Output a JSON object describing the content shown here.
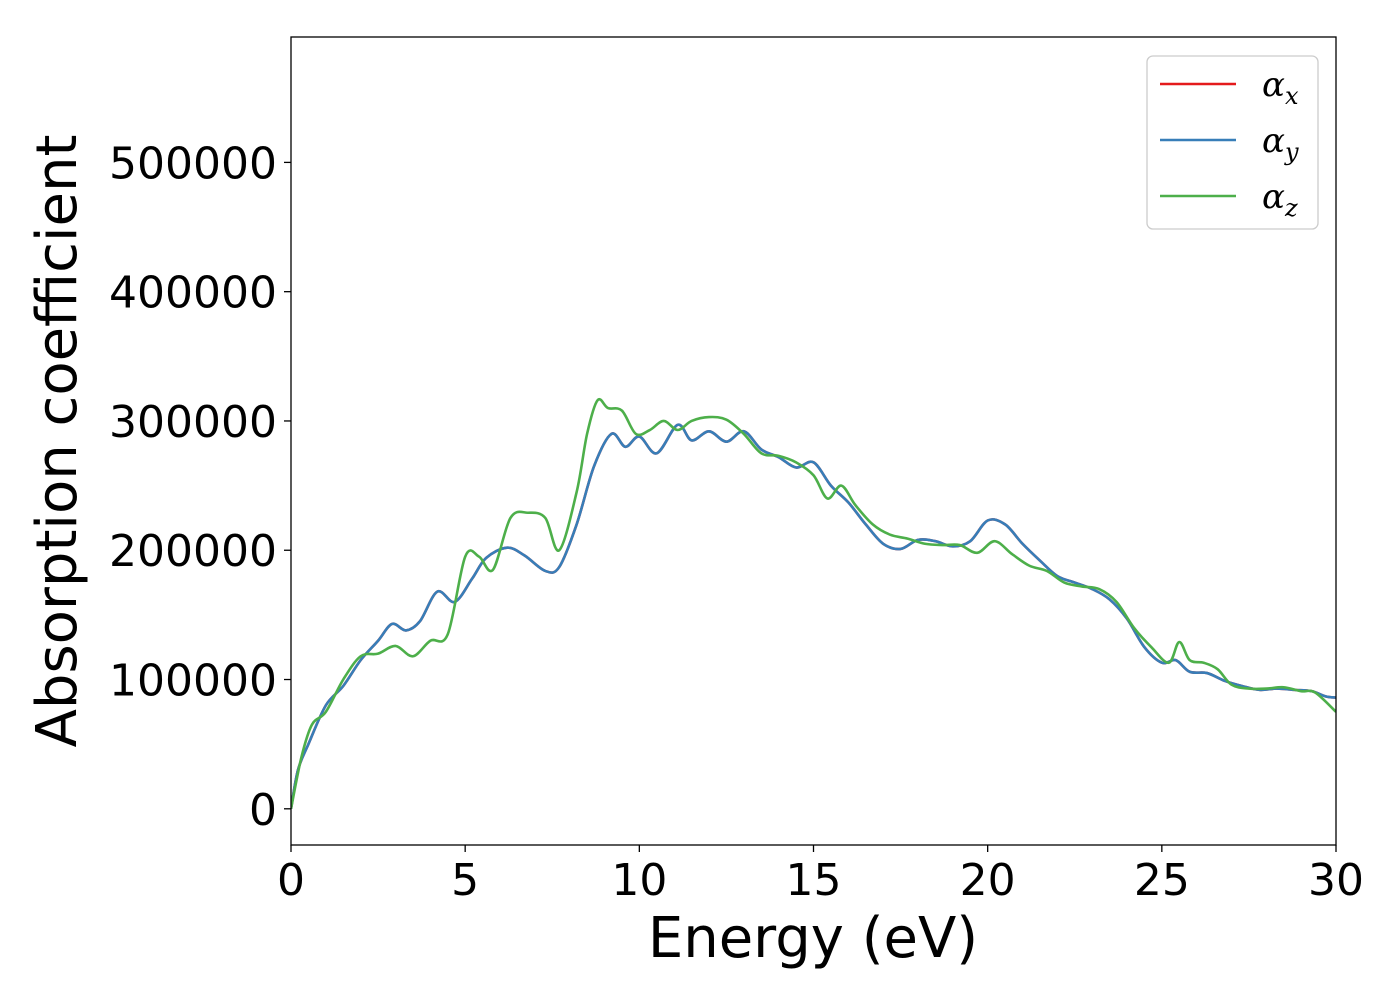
{
  "chart_data": {
    "type": "line",
    "xlabel": "Energy (eV)",
    "ylabel": "Absorption coefficient",
    "xlim": [
      0,
      30
    ],
    "ylim": [
      -28000,
      597000
    ],
    "xticks": [
      0,
      5,
      10,
      15,
      20,
      25,
      30
    ],
    "yticks": [
      0,
      100000,
      200000,
      300000,
      400000,
      500000
    ],
    "grid": false,
    "legend_position": "top-right",
    "series": [
      {
        "name": "αx",
        "symbol": "α",
        "subscript": "x",
        "color": "#e41a1c",
        "x": [
          0,
          0.2,
          0.5,
          1.0,
          1.5,
          2.0,
          2.5,
          2.9,
          3.3,
          3.7,
          4.2,
          4.7,
          5.2,
          5.6,
          6.2,
          6.7,
          7.3,
          7.7,
          8.2,
          8.7,
          9.2,
          9.6,
          10.0,
          10.5,
          11.1,
          11.5,
          12.0,
          12.5,
          13.0,
          13.5,
          14.0,
          14.5,
          15.0,
          15.5,
          16.0,
          16.5,
          17.0,
          17.5,
          18.0,
          18.5,
          19.0,
          19.5,
          20.0,
          20.5,
          21.0,
          21.5,
          22.0,
          22.5,
          23.0,
          23.5,
          24.0,
          24.5,
          25.0,
          25.4,
          25.8,
          26.3,
          26.8,
          27.3,
          27.8,
          28.3,
          28.8,
          29.3,
          29.7,
          30.0
        ],
        "y": [
          0,
          30000,
          50000,
          80000,
          95000,
          115000,
          130000,
          143000,
          138000,
          145000,
          168000,
          160000,
          178000,
          194000,
          202000,
          196000,
          184000,
          187000,
          220000,
          265000,
          290000,
          280000,
          288000,
          275000,
          297000,
          285000,
          292000,
          284000,
          292000,
          278000,
          272000,
          264000,
          268000,
          250000,
          237000,
          220000,
          205000,
          201000,
          208000,
          207000,
          203000,
          207000,
          223000,
          220000,
          205000,
          192000,
          180000,
          175000,
          170000,
          162000,
          147000,
          125000,
          113000,
          115000,
          106000,
          105000,
          99000,
          95000,
          92000,
          93000,
          92000,
          91000,
          87000,
          86000
        ]
      },
      {
        "name": "αy",
        "symbol": "α",
        "subscript": "y",
        "color": "#377eb8",
        "x": [
          0,
          0.2,
          0.5,
          1.0,
          1.5,
          2.0,
          2.5,
          2.9,
          3.3,
          3.7,
          4.2,
          4.7,
          5.2,
          5.6,
          6.2,
          6.7,
          7.3,
          7.7,
          8.2,
          8.7,
          9.2,
          9.6,
          10.0,
          10.5,
          11.1,
          11.5,
          12.0,
          12.5,
          13.0,
          13.5,
          14.0,
          14.5,
          15.0,
          15.5,
          16.0,
          16.5,
          17.0,
          17.5,
          18.0,
          18.5,
          19.0,
          19.5,
          20.0,
          20.5,
          21.0,
          21.5,
          22.0,
          22.5,
          23.0,
          23.5,
          24.0,
          24.5,
          25.0,
          25.4,
          25.8,
          26.3,
          26.8,
          27.3,
          27.8,
          28.3,
          28.8,
          29.3,
          29.7,
          30.0
        ],
        "y": [
          0,
          30000,
          50000,
          80000,
          95000,
          115000,
          130000,
          143000,
          138000,
          145000,
          168000,
          160000,
          178000,
          194000,
          202000,
          196000,
          184000,
          187000,
          220000,
          265000,
          290000,
          280000,
          288000,
          275000,
          297000,
          285000,
          292000,
          284000,
          292000,
          278000,
          272000,
          264000,
          268000,
          250000,
          237000,
          220000,
          205000,
          201000,
          208000,
          207000,
          203000,
          207000,
          223000,
          220000,
          205000,
          192000,
          180000,
          175000,
          170000,
          162000,
          147000,
          125000,
          113000,
          115000,
          106000,
          105000,
          99000,
          95000,
          92000,
          93000,
          92000,
          91000,
          87000,
          86000
        ]
      },
      {
        "name": "αz",
        "symbol": "α",
        "subscript": "z",
        "color": "#4daf4a",
        "x": [
          0,
          0.3,
          0.6,
          1.0,
          1.5,
          2.0,
          2.5,
          3.0,
          3.5,
          4.0,
          4.5,
          5.0,
          5.4,
          5.8,
          6.3,
          6.8,
          7.3,
          7.7,
          8.2,
          8.5,
          8.8,
          9.1,
          9.5,
          9.9,
          10.3,
          10.7,
          11.1,
          11.5,
          12.0,
          12.5,
          13.0,
          13.5,
          14.0,
          14.5,
          15.0,
          15.4,
          15.8,
          16.2,
          16.7,
          17.2,
          17.7,
          18.2,
          18.7,
          19.2,
          19.7,
          20.2,
          20.7,
          21.2,
          21.7,
          22.2,
          22.7,
          23.2,
          23.7,
          24.2,
          24.7,
          25.2,
          25.5,
          25.8,
          26.2,
          26.6,
          27.0,
          27.5,
          28.0,
          28.5,
          29.0,
          29.4,
          30.0
        ],
        "y": [
          0,
          40000,
          65000,
          75000,
          100000,
          118000,
          120000,
          126000,
          118000,
          130000,
          135000,
          195000,
          195000,
          185000,
          225000,
          229000,
          225000,
          200000,
          245000,
          290000,
          316000,
          310000,
          308000,
          290000,
          293000,
          300000,
          293000,
          300000,
          303000,
          301000,
          290000,
          275000,
          273000,
          268000,
          258000,
          240000,
          250000,
          235000,
          220000,
          212000,
          209000,
          205000,
          204000,
          204000,
          198000,
          207000,
          197000,
          188000,
          184000,
          175000,
          172000,
          170000,
          160000,
          140000,
          125000,
          113000,
          129000,
          115000,
          113000,
          108000,
          96000,
          93000,
          93000,
          94000,
          91000,
          90000,
          75000
        ]
      }
    ]
  }
}
